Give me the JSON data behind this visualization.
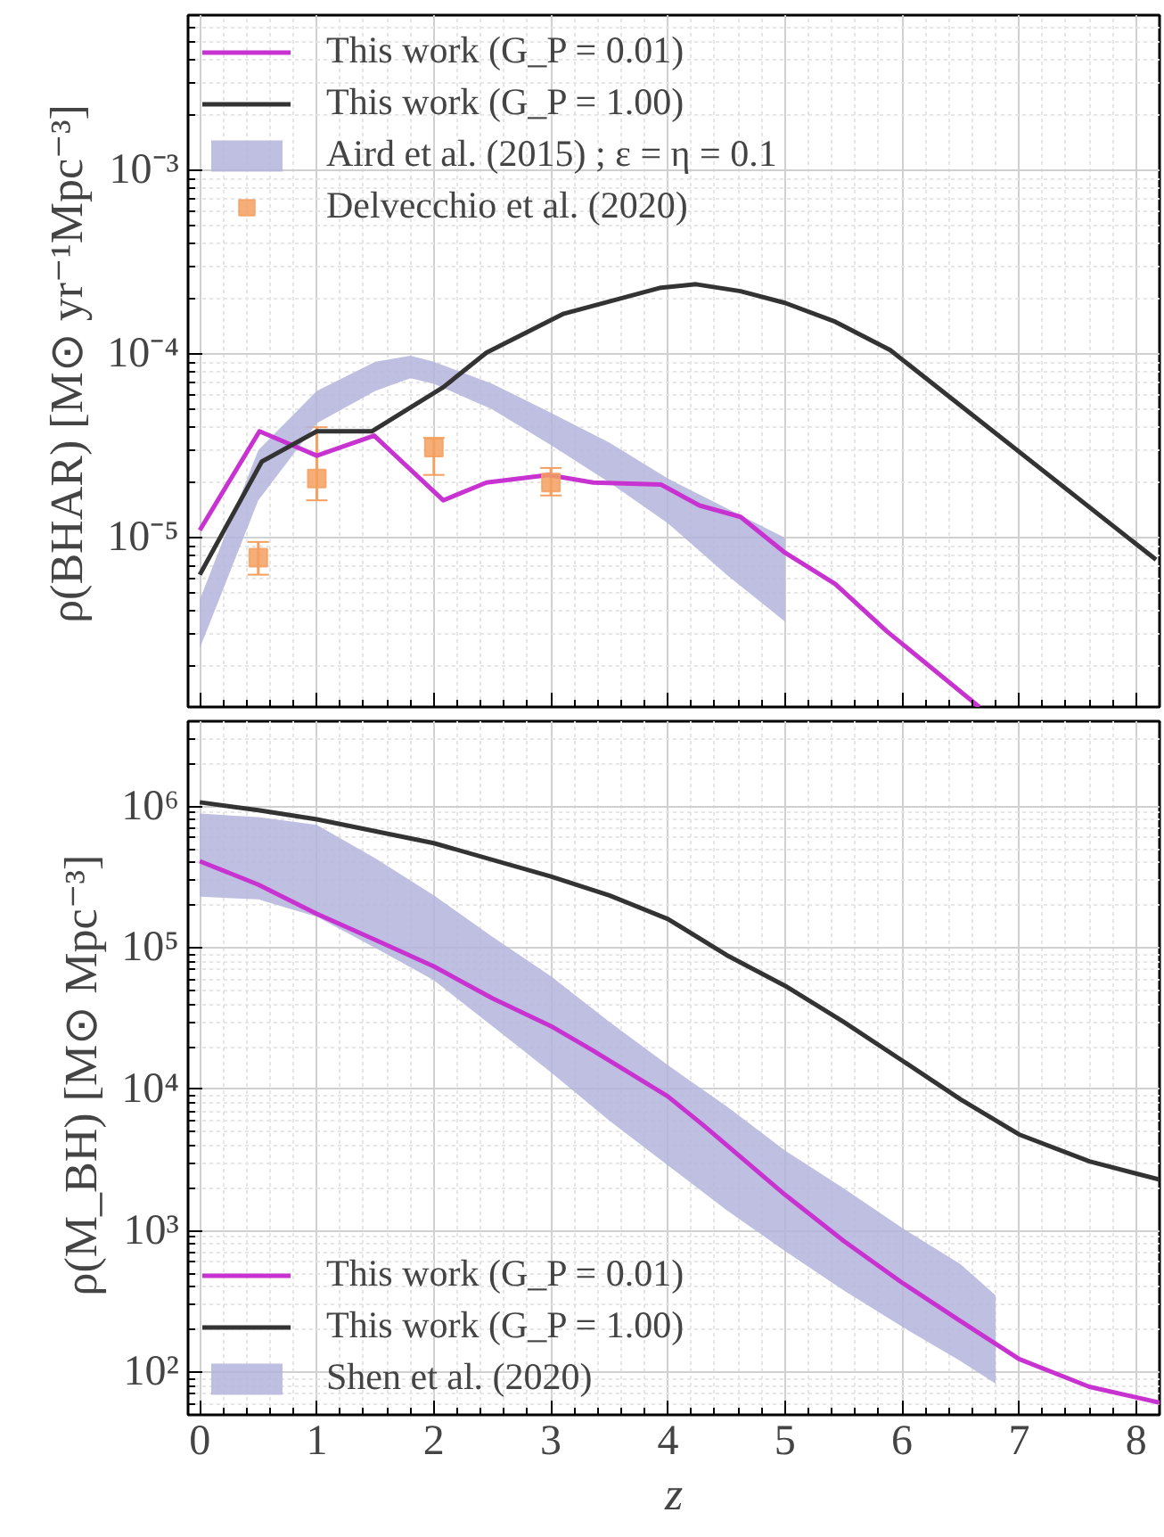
{
  "chart_data": [
    {
      "type": "line",
      "ylabel": "ρ(BHAR)   [M⊙ yr⁻¹Mpc⁻³]",
      "xlim": [
        -0.1,
        8.2
      ],
      "xticks": [
        0,
        1,
        2,
        3,
        4,
        5,
        6,
        7,
        8
      ],
      "ylim": [
        1.2e-06,
        0.007
      ],
      "log": "y",
      "grid": true,
      "legend": "top left",
      "tick_labels": "y",
      "yticks": [
        {
          "value": 1e-05,
          "label": "10⁻⁵"
        },
        {
          "value": 0.0001,
          "label": "10⁻⁴"
        },
        {
          "value": 0.001,
          "label": "10⁻³"
        }
      ],
      "series": [
        {
          "name": "This work (G_P = 0.01)",
          "color": "#c832d0",
          "x": [
            0,
            0.51,
            1.0,
            1.49,
            2.08,
            2.45,
            2.98,
            3.36,
            3.94,
            4.27,
            4.62,
            5.0,
            5.43,
            5.87,
            6.66
          ],
          "values": [
            1.1e-05,
            3.8e-05,
            2.8e-05,
            3.6e-05,
            1.6e-05,
            2e-05,
            2.2e-05,
            2e-05,
            1.95e-05,
            1.5e-05,
            1.3e-05,
            8.3e-06,
            5.6e-06,
            3.1e-06,
            1.2e-06
          ]
        },
        {
          "name": "This work (G_P = 1.00)",
          "color": "#333333",
          "x": [
            0,
            0.53,
            1.0,
            1.47,
            2.08,
            2.45,
            3.11,
            3.94,
            4.24,
            4.62,
            5.0,
            5.43,
            5.9,
            8.17
          ],
          "values": [
            6.3e-06,
            2.6e-05,
            3.8e-05,
            3.8e-05,
            6.6e-05,
            0.000102,
            0.000166,
            0.00023,
            0.00024,
            0.00022,
            0.00019,
            0.00015,
            0.000105,
            7.6e-06
          ]
        },
        {
          "name": "Aird et al. (2015) ; ε = η = 0.1",
          "type": "area",
          "color": "#b4b4dc",
          "x": [
            0,
            0.5,
            1,
            1.5,
            1.8,
            2,
            2.5,
            3,
            3.5,
            4,
            4.5,
            5
          ],
          "lower": [
            2.5e-06,
            1.6e-05,
            4.2e-05,
            6.3e-05,
            7.4e-05,
            6.9e-05,
            5e-05,
            3.2e-05,
            2e-05,
            1.2e-05,
            6.3e-06,
            3.5e-06
          ],
          "values": [
            null,
            null,
            null,
            null,
            null,
            null,
            null,
            null,
            null,
            null,
            null,
            null
          ],
          "upper": [
            4.6e-06,
            3e-05,
            6.3e-05,
            9.1e-05,
            9.8e-05,
            9.1e-05,
            6.9e-05,
            4.8e-05,
            3.3e-05,
            2.1e-05,
            1.45e-05,
            1e-05
          ]
        },
        {
          "name": "Delvecchio et al. (2020)",
          "type": "scatter",
          "color": "#f5a060",
          "marker": "square",
          "x": [
            0.5,
            1,
            2,
            3
          ],
          "values": [
            7.8e-06,
            2.1e-05,
            3.1e-05,
            2e-05
          ],
          "errors": [
            [
              6.3e-06,
              9.5e-06
            ],
            [
              1.6e-05,
              4e-05
            ],
            [
              2.2e-05,
              3.5e-05
            ],
            [
              1.7e-05,
              2.4e-05
            ]
          ]
        }
      ]
    },
    {
      "type": "line",
      "xlabel": "z",
      "ylabel": "ρ(M_BH)   [M⊙ Mpc⁻³]",
      "xlim": [
        -0.1,
        8.2
      ],
      "xticks": [
        0,
        1,
        2,
        3,
        4,
        5,
        6,
        7,
        8
      ],
      "ylim": [
        50,
        4000000.0
      ],
      "log": "y",
      "grid": true,
      "legend": "bottom left",
      "yticks": [
        {
          "value": 100,
          "label": "10²"
        },
        {
          "value": 1000,
          "label": "10³"
        },
        {
          "value": 10000,
          "label": "10⁴"
        },
        {
          "value": 100000,
          "label": "10⁵"
        },
        {
          "value": 1000000,
          "label": "10⁶"
        }
      ],
      "series": [
        {
          "name": "This work (G_P = 0.01)",
          "color": "#c832d0",
          "x": [
            0,
            0.5,
            1,
            1.5,
            2,
            2.5,
            3,
            3.35,
            4,
            4.3,
            5,
            5.5,
            6,
            6.5,
            7,
            7.6,
            8.2
          ],
          "values": [
            410000.0,
            280000.0,
            174000.0,
            114000.0,
            74000.0,
            44000.0,
            28000.0,
            19000.0,
            8900.0,
            5600.0,
            1800.0,
            850,
            430,
            230,
            124,
            79,
            61
          ]
        },
        {
          "name": "This work (G_P = 1.00)",
          "color": "#333333",
          "x": [
            0,
            0.5,
            1,
            2,
            3,
            3.5,
            4,
            4.5,
            5,
            5.5,
            6,
            6.5,
            7,
            7.6,
            8.2
          ],
          "values": [
            1070000.0,
            940000.0,
            810000.0,
            550000.0,
            320000.0,
            235000.0,
            160000.0,
            89000.0,
            54000.0,
            30000.0,
            16000.0,
            8500.0,
            4800.0,
            3100.0,
            2300.0
          ]
        },
        {
          "name": "Shen et al. (2020)",
          "type": "area",
          "color": "#b4b4dc",
          "x": [
            0,
            0.5,
            1,
            1.5,
            2,
            2.5,
            3,
            3.5,
            4,
            4.5,
            5,
            5.5,
            6,
            6.5,
            6.8
          ],
          "lower": [
            230000.0,
            220000.0,
            166000.0,
            100000.0,
            59000.0,
            28000.0,
            13200.0,
            6000.0,
            2900.0,
            1400.0,
            720,
            380,
            210,
            120,
            83
          ],
          "values": [
            null,
            null,
            null,
            null,
            null,
            null,
            null,
            null,
            null,
            null,
            null,
            null,
            null,
            null,
            null
          ],
          "upper": [
            890000.0,
            840000.0,
            740000.0,
            430000.0,
            235000.0,
            120000.0,
            63000.0,
            30000.0,
            14800.0,
            7600.0,
            3700.0,
            2000.0,
            1050.0,
            580,
            350
          ]
        }
      ]
    }
  ]
}
